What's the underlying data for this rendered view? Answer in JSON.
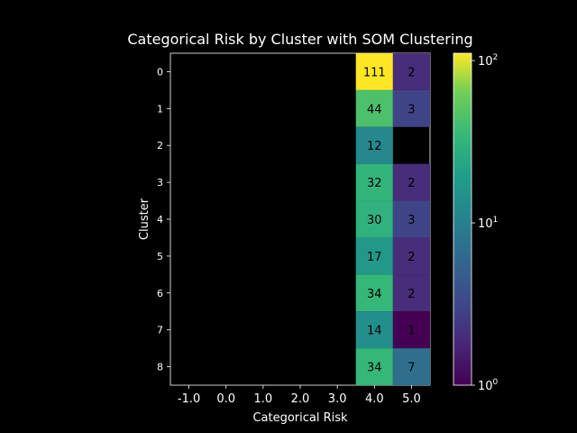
{
  "chart_data": {
    "type": "heatmap",
    "title": "Categorical Risk by Cluster with SOM Clustering",
    "xlabel": "Categorical Risk",
    "ylabel": "Cluster",
    "x_categories": [
      "-1.0",
      "0.0",
      "1.0",
      "2.0",
      "3.0",
      "4.0",
      "5.0"
    ],
    "y_categories": [
      "0",
      "1",
      "2",
      "3",
      "4",
      "5",
      "6",
      "7",
      "8"
    ],
    "values": [
      [
        null,
        null,
        null,
        null,
        null,
        111,
        2
      ],
      [
        null,
        null,
        null,
        null,
        null,
        44,
        3
      ],
      [
        null,
        null,
        null,
        null,
        null,
        12,
        null
      ],
      [
        null,
        null,
        null,
        null,
        null,
        32,
        2
      ],
      [
        null,
        null,
        null,
        null,
        null,
        30,
        3
      ],
      [
        null,
        null,
        null,
        null,
        null,
        17,
        2
      ],
      [
        null,
        null,
        null,
        null,
        null,
        34,
        2
      ],
      [
        null,
        null,
        null,
        null,
        null,
        14,
        1
      ],
      [
        null,
        null,
        null,
        null,
        null,
        34,
        7
      ]
    ],
    "colormap": "viridis",
    "color_scale": "log",
    "colorbar": {
      "range": [
        1,
        111
      ],
      "ticks": [
        {
          "value": 1,
          "base": "10",
          "exp": "0"
        },
        {
          "value": 10,
          "base": "10",
          "exp": "1"
        },
        {
          "value": 100,
          "base": "10",
          "exp": "2"
        }
      ]
    },
    "background": "#000000",
    "text_color": "#ffffff",
    "cell_label_color": "#000000"
  }
}
